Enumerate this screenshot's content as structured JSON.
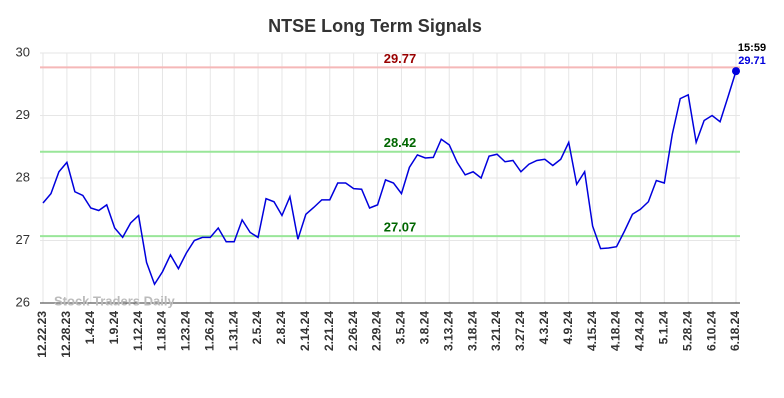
{
  "chart_data": {
    "type": "line",
    "title": "NTSE Long Term Signals",
    "categories": [
      "12.22.23",
      null,
      null,
      "12.28.23",
      null,
      null,
      "1.4.24",
      null,
      null,
      "1.9.24",
      null,
      null,
      "1.12.24",
      null,
      null,
      "1.18.24",
      null,
      null,
      "1.23.24",
      null,
      null,
      "1.26.24",
      null,
      null,
      "1.31.24",
      null,
      null,
      "2.5.24",
      null,
      null,
      "2.8.24",
      null,
      null,
      "2.14.24",
      null,
      null,
      "2.21.24",
      null,
      null,
      "2.26.24",
      null,
      null,
      "2.29.24",
      null,
      null,
      "3.5.24",
      null,
      null,
      "3.8.24",
      null,
      null,
      "3.13.24",
      null,
      null,
      "3.18.24",
      null,
      null,
      "3.21.24",
      null,
      null,
      "3.27.24",
      null,
      null,
      "4.3.24",
      null,
      null,
      "4.9.24",
      null,
      null,
      "4.15.24",
      null,
      null,
      "4.18.24",
      null,
      null,
      "4.24.24",
      null,
      null,
      "5.1.24",
      null,
      null,
      "5.28.24",
      null,
      null,
      "6.10.24",
      null,
      null,
      "6.18.24"
    ],
    "series": [
      {
        "name": "NTSE",
        "color": "#0000dd",
        "values": [
          27.6,
          27.75,
          28.1,
          28.25,
          27.78,
          27.72,
          27.52,
          27.48,
          27.57,
          27.2,
          27.05,
          27.28,
          27.4,
          26.65,
          26.3,
          26.5,
          26.77,
          26.55,
          26.8,
          27.0,
          27.05,
          27.05,
          27.2,
          26.98,
          26.98,
          27.33,
          27.13,
          27.05,
          27.67,
          27.62,
          27.4,
          27.7,
          27.02,
          27.42,
          27.53,
          27.65,
          27.65,
          27.92,
          27.92,
          27.83,
          27.82,
          27.52,
          27.57,
          27.97,
          27.92,
          27.75,
          28.17,
          28.37,
          28.32,
          28.33,
          28.62,
          28.53,
          28.25,
          28.05,
          28.1,
          28.0,
          28.35,
          28.38,
          28.26,
          28.28,
          28.1,
          28.22,
          28.28,
          28.3,
          28.2,
          28.3,
          28.57,
          27.9,
          28.1,
          27.23,
          26.87,
          26.88,
          26.9,
          27.15,
          27.42,
          27.5,
          27.62,
          27.96,
          27.92,
          28.7,
          29.27,
          29.33,
          28.57,
          28.92,
          29.0,
          28.9,
          29.3,
          29.71
        ]
      }
    ],
    "last_label": "15:59",
    "hlines": [
      {
        "value": 29.77,
        "color": "#f5b8b8",
        "label_color": "#990000"
      },
      {
        "value": 28.42,
        "color": "#99e699",
        "label_color": "#006600"
      },
      {
        "value": 27.07,
        "color": "#99e699",
        "label_color": "#006600"
      }
    ],
    "watermark": "Stock Traders Daily",
    "ylim": [
      26,
      30
    ],
    "yticks": [
      26,
      27,
      28,
      29,
      30
    ],
    "grid": true
  }
}
